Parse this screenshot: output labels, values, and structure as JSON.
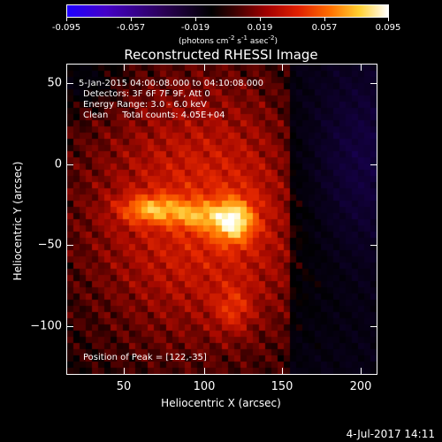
{
  "colorbar": {
    "tick_labels": [
      "-0.095",
      "-0.057",
      "-0.019",
      "0.019",
      "0.057",
      "0.095"
    ],
    "tick_values": [
      -0.095,
      -0.057,
      -0.019,
      0.019,
      0.057,
      0.095
    ],
    "units_prefix": "(photons cm",
    "units_exp1": "-2",
    "units_mid1": " s",
    "units_exp2": "-1",
    "units_mid2": " asec",
    "units_exp3": "-2",
    "units_suffix": ")"
  },
  "title": "Reconstructed RHESSI Image",
  "annotations": {
    "time_range": "5-Jan-2015 04:00:08.000 to 04:10:08.000",
    "detectors": "Detectors: 3F 6F 7F 9F, Att 0",
    "energy": "Energy Range: 3.0 - 6.0 keV",
    "clean": "Clean     Total counts: 4.05E+04",
    "peak": "Position of Peak = [122,-35]"
  },
  "axes": {
    "xlabel": "Heliocentric X (arcsec)",
    "ylabel": "Heliocentric Y (arcsec)",
    "x_ticks": [
      50,
      100,
      150,
      200
    ],
    "x_tick_labels": [
      "50",
      "100",
      "150",
      "200"
    ],
    "y_ticks": [
      50,
      0,
      -50,
      -100
    ],
    "y_tick_labels": [
      "50",
      "0",
      "−50",
      "−100"
    ],
    "xlim": [
      19,
      211
    ],
    "ylim": [
      -130,
      62
    ]
  },
  "timestamp": "4-Jul-2017 14:11",
  "colors": {
    "background": "#000000",
    "foreground": "#ffffff"
  }
}
